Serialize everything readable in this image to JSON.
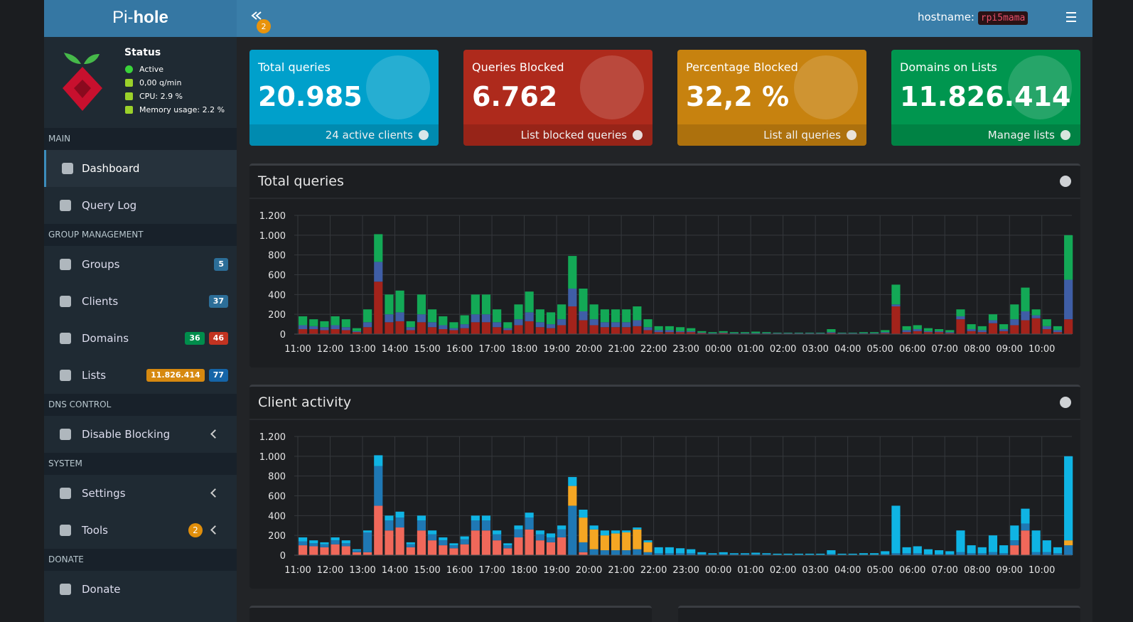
{
  "header": {
    "brand_prefix": "Pi-",
    "brand_bold": "hole",
    "notification_count": "2",
    "hostname_label": "hostname:",
    "hostname": "rpi5mama"
  },
  "sidebar": {
    "status": {
      "title": "Status",
      "items": [
        "Active",
        "0,00 q/min",
        "CPU: 2.9 %",
        "Memory usage: 2.2 %"
      ]
    },
    "sections": [
      {
        "title": "MAIN",
        "items": [
          {
            "label": "Dashboard",
            "active": true
          },
          {
            "label": "Query Log"
          }
        ]
      },
      {
        "title": "GROUP MANAGEMENT",
        "items": [
          {
            "label": "Groups",
            "badges": [
              {
                "text": "5",
                "color": "#2c6e98"
              }
            ]
          },
          {
            "label": "Clients",
            "badges": [
              {
                "text": "37",
                "color": "#2c6e98"
              }
            ]
          },
          {
            "label": "Domains",
            "badges": [
              {
                "text": "36",
                "color": "#008d4c"
              },
              {
                "text": "46",
                "color": "#c23321"
              }
            ]
          },
          {
            "label": "Lists",
            "badges": [
              {
                "text": "11.826.414",
                "color": "#d68910"
              },
              {
                "text": "77",
                "color": "#1565a8"
              }
            ]
          }
        ]
      },
      {
        "title": "DNS CONTROL",
        "items": [
          {
            "label": "Disable Blocking",
            "expandable": true
          }
        ]
      },
      {
        "title": "SYSTEM",
        "items": [
          {
            "label": "Settings",
            "expandable": true
          },
          {
            "label": "Tools",
            "expandable": true,
            "circle_badge": {
              "text": "2",
              "color": "#e08e0b"
            }
          }
        ]
      },
      {
        "title": "DONATE",
        "items": [
          {
            "label": "Donate"
          }
        ]
      }
    ]
  },
  "stats": [
    {
      "title": "Total queries",
      "value": "20.985",
      "link": "24 active clients",
      "color": "#00a0cb"
    },
    {
      "title": "Queries Blocked",
      "value": "6.762",
      "link": "List blocked queries",
      "color": "#ae2a1c"
    },
    {
      "title": "Percentage Blocked",
      "value": "32,2 %",
      "link": "List all queries",
      "color": "#c7820f"
    },
    {
      "title": "Domains on Lists",
      "value": "11.826.414",
      "link": "Manage lists",
      "color": "#00964f"
    }
  ],
  "chart_data": [
    {
      "type": "bar",
      "stacked": true,
      "title": "Total queries",
      "grid": true,
      "categories": [
        "11:00",
        null,
        null,
        "12:00",
        null,
        null,
        "13:00",
        null,
        null,
        "14:00",
        null,
        null,
        "15:00",
        null,
        null,
        "16:00",
        null,
        null,
        "17:00",
        null,
        null,
        "18:00",
        null,
        null,
        "19:00",
        null,
        null,
        "20:00",
        null,
        null,
        "21:00",
        null,
        null,
        "22:00",
        null,
        null,
        "23:00",
        null,
        null,
        "00:00",
        null,
        null,
        "01:00",
        null,
        null,
        "02:00",
        null,
        null,
        "03:00",
        null,
        null,
        "04:00",
        null,
        null,
        "05:00",
        null,
        null,
        "06:00",
        null,
        null,
        "07:00",
        null,
        null,
        "08:00",
        null,
        null,
        "09:00",
        null,
        null,
        "10:00",
        null,
        null
      ],
      "series": [
        {
          "color": "#a3231b",
          "values": [
            50,
            50,
            40,
            50,
            40,
            20,
            70,
            530,
            120,
            130,
            40,
            120,
            70,
            50,
            40,
            60,
            120,
            120,
            70,
            40,
            90,
            130,
            70,
            60,
            90,
            280,
            140,
            90,
            70,
            70,
            70,
            80,
            40,
            20,
            20,
            20,
            20,
            10,
            5,
            10,
            5,
            5,
            5,
            5,
            5,
            5,
            5,
            5,
            5,
            10,
            5,
            5,
            5,
            5,
            10,
            280,
            20,
            30,
            20,
            20,
            10,
            150,
            30,
            20,
            110,
            30,
            90,
            140,
            160,
            50,
            20,
            150
          ]
        },
        {
          "color": "#3f5ea6",
          "values": [
            40,
            30,
            30,
            40,
            30,
            10,
            50,
            200,
            80,
            90,
            30,
            80,
            50,
            40,
            20,
            40,
            80,
            80,
            50,
            20,
            60,
            90,
            50,
            40,
            60,
            180,
            90,
            60,
            50,
            50,
            50,
            60,
            30,
            20,
            20,
            10,
            10,
            5,
            5,
            5,
            5,
            5,
            5,
            5,
            5,
            5,
            5,
            5,
            5,
            10,
            5,
            5,
            5,
            5,
            10,
            20,
            20,
            20,
            10,
            10,
            10,
            30,
            20,
            20,
            30,
            20,
            60,
            90,
            30,
            30,
            20,
            400
          ]
        },
        {
          "color": "#13a956",
          "values": [
            90,
            70,
            60,
            90,
            80,
            30,
            130,
            280,
            200,
            220,
            60,
            200,
            130,
            90,
            60,
            90,
            200,
            200,
            130,
            60,
            150,
            210,
            130,
            120,
            150,
            330,
            230,
            150,
            130,
            130,
            130,
            140,
            80,
            40,
            40,
            40,
            30,
            15,
            10,
            15,
            10,
            10,
            15,
            10,
            5,
            5,
            5,
            5,
            5,
            30,
            5,
            5,
            10,
            10,
            20,
            200,
            40,
            40,
            30,
            20,
            20,
            70,
            50,
            40,
            60,
            50,
            150,
            240,
            60,
            70,
            40,
            450
          ]
        }
      ],
      "ylim": [
        0,
        1200
      ],
      "yticks": [
        0,
        200,
        400,
        600,
        800,
        {
          "value": 1000,
          "label": "1.000"
        },
        {
          "value": 1200,
          "label": "1.200"
        }
      ]
    },
    {
      "type": "bar",
      "stacked": true,
      "title": "Client activity",
      "grid": true,
      "categories": [
        "11:00",
        null,
        null,
        "12:00",
        null,
        null,
        "13:00",
        null,
        null,
        "14:00",
        null,
        null,
        "15:00",
        null,
        null,
        "16:00",
        null,
        null,
        "17:00",
        null,
        null,
        "18:00",
        null,
        null,
        "19:00",
        null,
        null,
        "20:00",
        null,
        null,
        "21:00",
        null,
        null,
        "22:00",
        null,
        null,
        "23:00",
        null,
        null,
        "00:00",
        null,
        null,
        "01:00",
        null,
        null,
        "02:00",
        null,
        null,
        "03:00",
        null,
        null,
        "04:00",
        null,
        null,
        "05:00",
        null,
        null,
        "06:00",
        null,
        null,
        "07:00",
        null,
        null,
        "08:00",
        null,
        null,
        "09:00",
        null,
        null,
        "10:00",
        null,
        null
      ],
      "series": [
        {
          "color": "#f0685a",
          "values": [
            100,
            90,
            80,
            110,
            90,
            30,
            30,
            500,
            250,
            280,
            80,
            250,
            150,
            100,
            70,
            110,
            250,
            250,
            150,
            70,
            180,
            260,
            150,
            130,
            180,
            0,
            30,
            0,
            0,
            0,
            0,
            0,
            0,
            0,
            0,
            0,
            0,
            0,
            0,
            0,
            0,
            0,
            0,
            0,
            0,
            0,
            0,
            0,
            0,
            0,
            0,
            0,
            0,
            0,
            0,
            0,
            0,
            0,
            0,
            0,
            0,
            0,
            0,
            0,
            0,
            0,
            100,
            250,
            0,
            0,
            0,
            0
          ]
        },
        {
          "color": "#1f78b4",
          "values": [
            40,
            30,
            30,
            40,
            30,
            20,
            200,
            400,
            100,
            100,
            30,
            100,
            60,
            50,
            30,
            50,
            100,
            100,
            60,
            30,
            80,
            120,
            60,
            50,
            80,
            500,
            100,
            60,
            50,
            50,
            50,
            60,
            30,
            20,
            20,
            20,
            20,
            10,
            10,
            10,
            10,
            10,
            10,
            10,
            5,
            5,
            5,
            5,
            5,
            10,
            5,
            5,
            5,
            5,
            10,
            20,
            20,
            20,
            10,
            10,
            10,
            30,
            20,
            20,
            30,
            20,
            50,
            70,
            30,
            30,
            20,
            100
          ]
        },
        {
          "color": "#f5a623",
          "values": [
            0,
            0,
            0,
            0,
            0,
            0,
            0,
            0,
            0,
            0,
            0,
            0,
            0,
            0,
            0,
            0,
            0,
            0,
            0,
            0,
            0,
            0,
            0,
            0,
            0,
            200,
            250,
            200,
            150,
            170,
            180,
            200,
            100,
            0,
            0,
            0,
            0,
            0,
            0,
            0,
            0,
            0,
            0,
            0,
            0,
            0,
            0,
            0,
            0,
            0,
            0,
            0,
            0,
            0,
            0,
            0,
            0,
            0,
            0,
            0,
            0,
            0,
            0,
            0,
            0,
            0,
            0,
            0,
            0,
            0,
            0,
            50
          ]
        },
        {
          "color": "#0fb4e4",
          "values": [
            40,
            30,
            20,
            30,
            30,
            10,
            20,
            110,
            50,
            60,
            20,
            50,
            40,
            30,
            20,
            30,
            50,
            50,
            40,
            20,
            40,
            50,
            40,
            40,
            40,
            90,
            80,
            40,
            50,
            30,
            20,
            20,
            20,
            60,
            60,
            50,
            40,
            20,
            10,
            20,
            10,
            10,
            15,
            10,
            10,
            10,
            10,
            10,
            10,
            40,
            10,
            10,
            15,
            15,
            30,
            480,
            60,
            70,
            50,
            40,
            30,
            220,
            80,
            60,
            170,
            80,
            150,
            150,
            220,
            120,
            60,
            850
          ]
        }
      ],
      "ylim": [
        0,
        1200
      ],
      "yticks": [
        0,
        200,
        400,
        600,
        800,
        {
          "value": 1000,
          "label": "1.000"
        },
        {
          "value": 1200,
          "label": "1.200"
        }
      ]
    }
  ]
}
